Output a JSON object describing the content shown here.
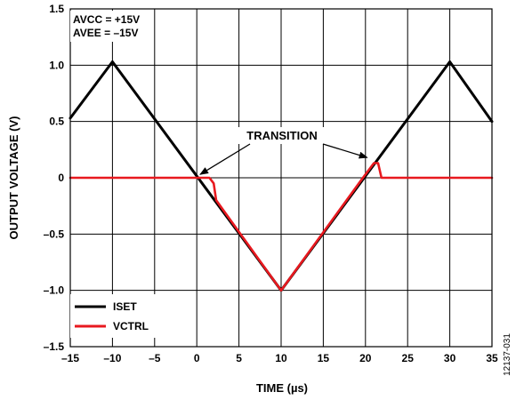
{
  "chart_data": {
    "type": "line",
    "title": "",
    "xlabel": "TIME (µs)",
    "ylabel": "OUTPUT VOLTAGE (V)",
    "xlim": [
      -15,
      35
    ],
    "ylim": [
      -1.5,
      1.5
    ],
    "x_ticks": [
      -15,
      -10,
      -5,
      0,
      5,
      10,
      15,
      20,
      25,
      30,
      35
    ],
    "x_tick_labels": [
      "–15",
      "–10",
      "–5",
      "0",
      "5",
      "10",
      "15",
      "20",
      "25",
      "30",
      "35"
    ],
    "y_ticks": [
      1.5,
      1.0,
      0.5,
      0,
      -0.5,
      -1.0,
      -1.5
    ],
    "y_tick_labels": [
      "1.5",
      "1.0",
      "0.5",
      "0",
      "–0.5",
      "–1.0",
      "–1.5"
    ],
    "grid": true,
    "legend": {
      "position": "bottom-left"
    },
    "series": [
      {
        "name": "ISET",
        "color": "#000000",
        "x": [
          -15,
          -10,
          10,
          30,
          35
        ],
        "y": [
          0.53,
          1.03,
          -1.0,
          1.03,
          0.5
        ]
      },
      {
        "name": "VCTRL",
        "color": "#e8191f",
        "x": [
          -15,
          1.5,
          2.0,
          2.3,
          10,
          19.5,
          21.0,
          21.5,
          21.9,
          35
        ],
        "y": [
          0.0,
          0.0,
          -0.05,
          -0.2,
          -1.0,
          -0.02,
          0.13,
          0.13,
          0.0,
          0.0
        ]
      }
    ],
    "annotations": {
      "supply_lines": [
        "AVCC = +15V",
        "AVEE = –15V"
      ],
      "transition_label": "TRANSITION",
      "transition_points": [
        {
          "x": 0.4,
          "y": 0.03
        },
        {
          "x": 20.2,
          "y": 0.18
        }
      ]
    },
    "figure_id": "12137-031"
  }
}
